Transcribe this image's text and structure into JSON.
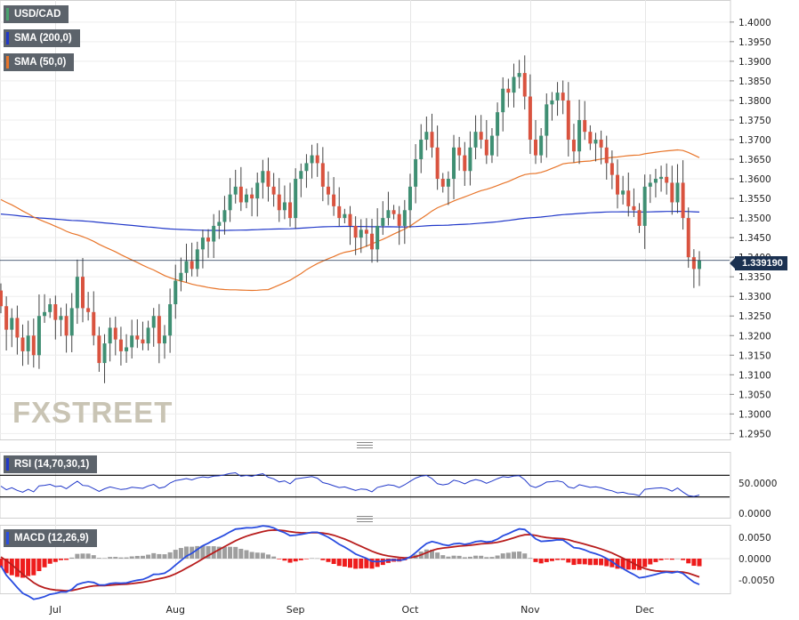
{
  "legends": {
    "symbol": "USD/CAD",
    "sma200": "SMA (200,0)",
    "sma50": "SMA (50,0)",
    "rsi": "RSI (14,70,30,1)",
    "macd": "MACD (12,26,9)"
  },
  "last_price_label": "1.339190",
  "watermark": "FXSTREET",
  "colors": {
    "up": "#3f8f73",
    "down": "#d9533f",
    "sma200": "#2138c9",
    "sma50": "#e8752a",
    "rsi": "#2138c9",
    "macd": "#2a4de0",
    "signal": "#b81d1d",
    "hist_pos": "#9e9e9e",
    "hist_neg": "#ee1c1c",
    "badge": "#1b3151",
    "legend_bg": "#5c636b"
  },
  "chart_data": {
    "type": "candlestick",
    "price_ticks": [
      "1.4000",
      "1.3950",
      "1.3900",
      "1.3850",
      "1.3800",
      "1.3750",
      "1.3700",
      "1.3650",
      "1.3600",
      "1.3550",
      "1.3500",
      "1.3450",
      "1.3400",
      "1.3350",
      "1.3300",
      "1.3250",
      "1.3200",
      "1.3150",
      "1.3100",
      "1.3050",
      "1.3000",
      "1.2950"
    ],
    "rsi_ticks": [
      "50.0000",
      "0.0000"
    ],
    "macd_ticks": [
      "0.0050",
      "0.0000",
      "-0.0050"
    ],
    "x_labels": [
      {
        "label": "Jul",
        "index": 10
      },
      {
        "label": "Aug",
        "index": 32
      },
      {
        "label": "Sep",
        "index": 54
      },
      {
        "label": "Oct",
        "index": 75
      },
      {
        "label": "Nov",
        "index": 97
      },
      {
        "label": "Dec",
        "index": 118
      }
    ],
    "ylim": [
      1.2935,
      1.4045
    ],
    "last_price": 1.33919,
    "closes": [
      1.3275,
      1.3215,
      1.3245,
      1.3195,
      1.316,
      1.32,
      1.315,
      1.325,
      1.326,
      1.328,
      1.324,
      1.325,
      1.32,
      1.327,
      1.335,
      1.327,
      1.326,
      1.32,
      1.313,
      1.318,
      1.322,
      1.319,
      1.316,
      1.317,
      1.32,
      1.319,
      1.318,
      1.322,
      1.325,
      1.318,
      1.32,
      1.328,
      1.334,
      1.336,
      1.339,
      1.337,
      1.342,
      1.345,
      1.344,
      1.348,
      1.349,
      1.352,
      1.356,
      1.358,
      1.354,
      1.356,
      1.355,
      1.359,
      1.362,
      1.358,
      1.356,
      1.352,
      1.354,
      1.35,
      1.36,
      1.362,
      1.364,
      1.366,
      1.364,
      1.358,
      1.356,
      1.353,
      1.35,
      1.351,
      1.348,
      1.345,
      1.347,
      1.346,
      1.342,
      1.348,
      1.35,
      1.352,
      1.351,
      1.348,
      1.352,
      1.358,
      1.365,
      1.37,
      1.372,
      1.368,
      1.36,
      1.358,
      1.36,
      1.368,
      1.366,
      1.362,
      1.368,
      1.372,
      1.37,
      1.366,
      1.371,
      1.377,
      1.383,
      1.382,
      1.386,
      1.387,
      1.381,
      1.37,
      1.366,
      1.371,
      1.379,
      1.38,
      1.382,
      1.38,
      1.37,
      1.367,
      1.375,
      1.372,
      1.369,
      1.37,
      1.368,
      1.364,
      1.361,
      1.356,
      1.357,
      1.353,
      1.352,
      1.348,
      1.358,
      1.359,
      1.36,
      1.3605,
      1.359,
      1.354,
      1.359,
      1.35,
      1.34,
      1.337,
      1.3392
    ]
  }
}
